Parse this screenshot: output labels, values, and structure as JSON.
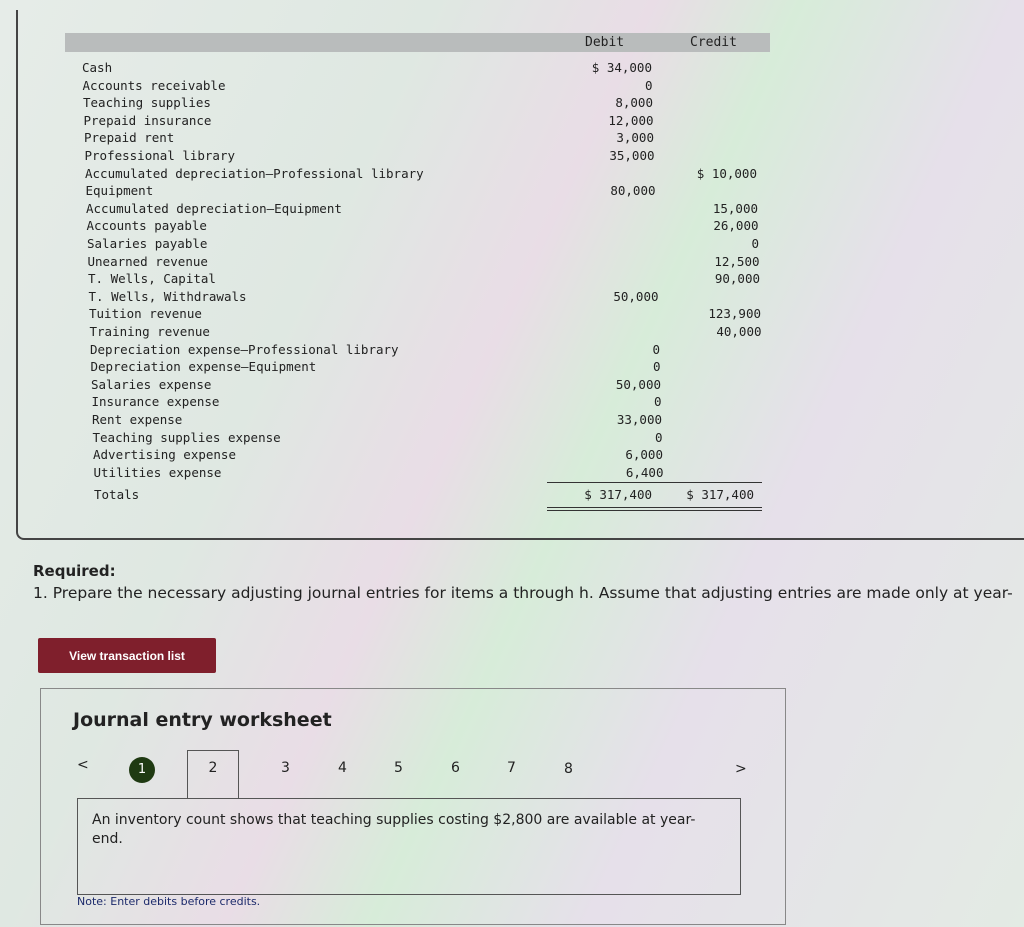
{
  "trial_balance": {
    "headers": {
      "debit": "Debit",
      "credit": "Credit"
    },
    "rows": [
      {
        "account": "Cash",
        "debit": "$ 34,000",
        "credit": ""
      },
      {
        "account": "Accounts receivable",
        "debit": "0",
        "credit": ""
      },
      {
        "account": "Teaching supplies",
        "debit": "8,000",
        "credit": ""
      },
      {
        "account": "Prepaid insurance",
        "debit": "12,000",
        "credit": ""
      },
      {
        "account": "Prepaid rent",
        "debit": "3,000",
        "credit": ""
      },
      {
        "account": "Professional library",
        "debit": "35,000",
        "credit": ""
      },
      {
        "account": "Accumulated depreciation—Professional library",
        "debit": "",
        "credit": "$ 10,000"
      },
      {
        "account": "Equipment",
        "debit": "80,000",
        "credit": ""
      },
      {
        "account": "Accumulated depreciation—Equipment",
        "debit": "",
        "credit": "15,000"
      },
      {
        "account": "Accounts payable",
        "debit": "",
        "credit": "26,000"
      },
      {
        "account": "Salaries payable",
        "debit": "",
        "credit": "0"
      },
      {
        "account": "Unearned revenue",
        "debit": "",
        "credit": "12,500"
      },
      {
        "account": "T. Wells, Capital",
        "debit": "",
        "credit": "90,000"
      },
      {
        "account": "T. Wells, Withdrawals",
        "debit": "50,000",
        "credit": ""
      },
      {
        "account": "Tuition revenue",
        "debit": "",
        "credit": "123,900"
      },
      {
        "account": "Training revenue",
        "debit": "",
        "credit": "40,000"
      },
      {
        "account": "Depreciation expense—Professional library",
        "debit": "0",
        "credit": ""
      },
      {
        "account": "Depreciation expense—Equipment",
        "debit": "0",
        "credit": ""
      },
      {
        "account": "Salaries expense",
        "debit": "50,000",
        "credit": ""
      },
      {
        "account": "Insurance expense",
        "debit": "0",
        "credit": ""
      },
      {
        "account": "Rent expense",
        "debit": "33,000",
        "credit": ""
      },
      {
        "account": "Teaching supplies expense",
        "debit": "0",
        "credit": ""
      },
      {
        "account": "Advertising expense",
        "debit": "6,000",
        "credit": ""
      },
      {
        "account": "Utilities expense",
        "debit": "6,400",
        "credit": ""
      }
    ],
    "totals": {
      "label": "Totals",
      "debit": "$ 317,400",
      "credit": "$ 317,400"
    }
  },
  "required": {
    "heading": "Required:",
    "instruction": "1. Prepare the necessary adjusting journal entries for items a through h. Assume that adjusting entries are made only at year-"
  },
  "view_transaction_list": "View transaction list",
  "worksheet": {
    "title": "Journal entry worksheet",
    "prev": "<",
    "next": ">",
    "steps": [
      "1",
      "2",
      "3",
      "4",
      "5",
      "6",
      "7",
      "8"
    ],
    "active_step": "2",
    "completed_step": "1",
    "description": "An inventory count shows that teaching supplies costing $2,800 are available at year-end.",
    "note": "Note: Enter debits before credits."
  },
  "colors": {
    "button": "#7f1f2c",
    "completed_step": "#1f3a12"
  }
}
